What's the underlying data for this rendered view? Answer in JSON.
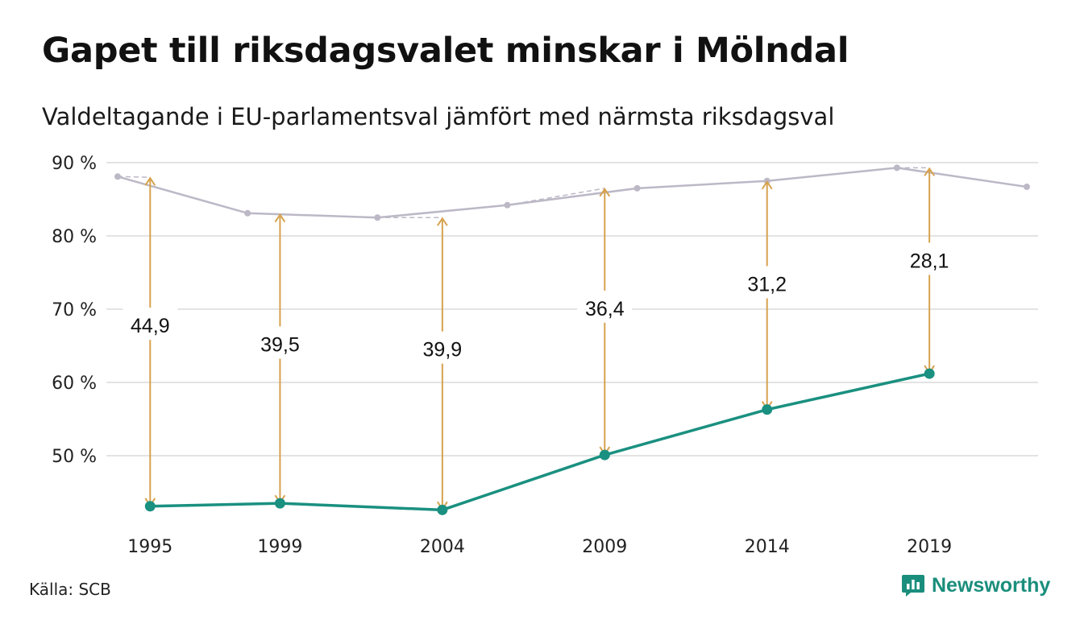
{
  "header": {
    "title": "Gapet till riksdagsvalet minskar i Mölndal",
    "subtitle": "Valdeltagande i EU-parlamentsval jämfört med närmsta riksdagsval"
  },
  "footer": {
    "source": "Källa: SCB",
    "brand": "Newsworthy",
    "brand_icon": "newsworthy-logo-icon"
  },
  "colors": {
    "eu_line": "#1a9080",
    "riksdag_line": "#bcb8c6",
    "gap_arrow": "#d6a24e",
    "grid": "#e3e3e3"
  },
  "chart_data": {
    "type": "line",
    "title": "Gapet till riksdagsvalet minskar i Mölndal",
    "subtitle": "Valdeltagande i EU-parlamentsval jämfört med närmsta riksdagsval",
    "ylim": [
      40,
      90
    ],
    "y_ticks": [
      50,
      60,
      70,
      80,
      90
    ],
    "y_tick_labels": [
      "50 %",
      "60 %",
      "70 %",
      "80 %",
      "90 %"
    ],
    "xlim": [
      1994,
      2022
    ],
    "x_ticks": [
      1995,
      1999,
      2004,
      2009,
      2014,
      2019
    ],
    "x_tick_labels": [
      "1995",
      "1999",
      "2004",
      "2009",
      "2014",
      "2019"
    ],
    "grid": true,
    "series": [
      {
        "id": "riksdag",
        "x": [
          1994,
          1998,
          2002,
          2006,
          2010,
          2014,
          2018,
          2022
        ],
        "values": [
          88.1,
          83.1,
          82.5,
          84.2,
          86.5,
          87.5,
          89.3,
          86.7
        ]
      },
      {
        "id": "eu",
        "x": [
          1995,
          1999,
          2004,
          2009,
          2014,
          2019
        ],
        "values": [
          43.1,
          43.5,
          42.6,
          50.1,
          56.3,
          61.2
        ]
      }
    ],
    "gaps": [
      {
        "x": 1995,
        "label": "44,9",
        "from": 88.0,
        "to": 43.1
      },
      {
        "x": 1999,
        "label": "39,5",
        "from": 83.0,
        "to": 43.5
      },
      {
        "x": 2004,
        "label": "39,9",
        "from": 82.5,
        "to": 42.6
      },
      {
        "x": 2009,
        "label": "36,4",
        "from": 86.5,
        "to": 50.1
      },
      {
        "x": 2014,
        "label": "31,2",
        "from": 87.5,
        "to": 56.3
      },
      {
        "x": 2019,
        "label": "28,1",
        "from": 89.3,
        "to": 61.2
      }
    ]
  }
}
